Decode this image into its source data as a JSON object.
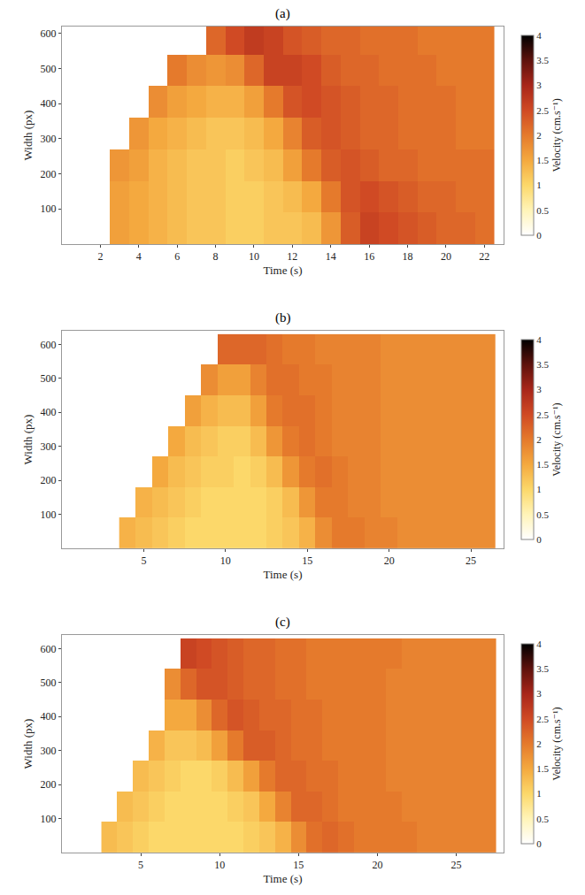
{
  "chart_data": [
    {
      "type": "heatmap",
      "title": "(a)",
      "x_label": "Time (s)",
      "y_label": "Width (px)",
      "x": [
        2,
        3,
        4,
        5,
        6,
        7,
        8,
        9,
        10,
        11,
        12,
        13,
        14,
        15,
        16,
        17,
        18,
        19,
        20,
        21,
        22
      ],
      "y": [
        45,
        135,
        225,
        315,
        405,
        495,
        585
      ],
      "z": [
        [
          null,
          1.6,
          1.5,
          1.4,
          1.3,
          1.2,
          1.2,
          1.1,
          1.1,
          1.2,
          1.2,
          1.3,
          1.7,
          2.3,
          2.6,
          2.5,
          2.4,
          2.3,
          2.2,
          2.2,
          2.1
        ],
        [
          null,
          1.6,
          1.5,
          1.4,
          1.3,
          1.2,
          1.2,
          1.1,
          1.1,
          1.2,
          1.3,
          1.5,
          2.0,
          2.4,
          2.5,
          2.4,
          2.3,
          2.2,
          2.2,
          2.1,
          2.1
        ],
        [
          null,
          1.7,
          1.6,
          1.4,
          1.3,
          1.2,
          1.2,
          1.1,
          1.2,
          1.3,
          1.6,
          2.0,
          2.3,
          2.4,
          2.3,
          2.2,
          2.2,
          2.1,
          2.1,
          2.1,
          2.1
        ],
        [
          null,
          null,
          1.7,
          1.5,
          1.4,
          1.3,
          1.2,
          1.2,
          1.3,
          1.5,
          1.9,
          2.3,
          2.4,
          2.3,
          2.2,
          2.2,
          2.1,
          2.1,
          2.1,
          2.0,
          2.0
        ],
        [
          null,
          null,
          null,
          1.8,
          1.6,
          1.5,
          1.4,
          1.4,
          1.6,
          2.0,
          2.4,
          2.5,
          2.4,
          2.3,
          2.2,
          2.2,
          2.1,
          2.1,
          2.1,
          2.0,
          2.0
        ],
        [
          null,
          null,
          null,
          null,
          2.0,
          1.8,
          1.7,
          1.8,
          2.2,
          2.6,
          2.6,
          2.5,
          2.3,
          2.2,
          2.2,
          2.1,
          2.1,
          2.1,
          2.0,
          2.0,
          2.0
        ],
        [
          null,
          null,
          null,
          null,
          null,
          null,
          2.2,
          2.5,
          2.7,
          2.6,
          2.4,
          2.3,
          2.2,
          2.2,
          2.1,
          2.1,
          2.1,
          2.0,
          2.0,
          2.0,
          2.0
        ]
      ],
      "xlim": [
        0,
        23
      ],
      "xticks": [
        2,
        4,
        6,
        8,
        10,
        12,
        14,
        16,
        18,
        20,
        22
      ],
      "ylim": [
        0,
        620
      ],
      "yticks": [
        100,
        200,
        300,
        400,
        500,
        600
      ],
      "colorbar": {
        "title": "Velocity (cm.s⁻¹)",
        "range": [
          0,
          4
        ],
        "ticks": [
          0,
          0.5,
          1,
          1.5,
          2,
          2.5,
          3,
          3.5,
          4
        ]
      }
    },
    {
      "type": "heatmap",
      "title": "(b)",
      "x_label": "Time (s)",
      "y_label": "Width (px)",
      "x": [
        4,
        5,
        6,
        7,
        8,
        9,
        10,
        11,
        12,
        13,
        14,
        15,
        16,
        17,
        18,
        19,
        20,
        21,
        22,
        23,
        24,
        25,
        26
      ],
      "y": [
        45,
        135,
        225,
        315,
        405,
        495,
        585
      ],
      "z": [
        [
          1.4,
          1.3,
          1.2,
          1.1,
          1.0,
          1.0,
          1.0,
          1.0,
          1.0,
          1.1,
          1.2,
          1.4,
          1.8,
          2.0,
          2.0,
          1.9,
          1.9,
          1.8,
          1.8,
          1.8,
          1.8,
          1.8,
          1.8
        ],
        [
          null,
          1.4,
          1.3,
          1.2,
          1.1,
          1.0,
          1.0,
          1.0,
          1.0,
          1.1,
          1.3,
          1.7,
          2.0,
          2.0,
          1.9,
          1.9,
          1.8,
          1.8,
          1.8,
          1.8,
          1.8,
          1.8,
          1.8
        ],
        [
          null,
          null,
          1.5,
          1.3,
          1.2,
          1.1,
          1.1,
          1.0,
          1.1,
          1.3,
          1.7,
          2.0,
          2.1,
          2.0,
          1.9,
          1.9,
          1.8,
          1.8,
          1.8,
          1.8,
          1.8,
          1.8,
          1.8
        ],
        [
          null,
          null,
          null,
          1.5,
          1.3,
          1.2,
          1.1,
          1.1,
          1.3,
          1.7,
          2.0,
          2.1,
          2.0,
          1.9,
          1.9,
          1.9,
          1.8,
          1.8,
          1.8,
          1.8,
          1.8,
          1.8,
          1.8
        ],
        [
          null,
          null,
          null,
          null,
          1.6,
          1.4,
          1.3,
          1.3,
          1.6,
          2.0,
          2.1,
          2.1,
          2.0,
          1.9,
          1.9,
          1.9,
          1.8,
          1.8,
          1.8,
          1.8,
          1.8,
          1.8,
          1.8
        ],
        [
          null,
          null,
          null,
          null,
          null,
          1.8,
          1.6,
          1.6,
          1.9,
          2.1,
          2.1,
          2.0,
          2.0,
          1.9,
          1.9,
          1.9,
          1.8,
          1.8,
          1.8,
          1.8,
          1.8,
          1.8,
          1.8
        ],
        [
          null,
          null,
          null,
          null,
          null,
          null,
          2.2,
          2.2,
          2.2,
          2.1,
          2.0,
          2.0,
          1.9,
          1.9,
          1.9,
          1.9,
          1.8,
          1.8,
          1.8,
          1.8,
          1.8,
          1.8,
          1.8
        ]
      ],
      "xlim": [
        0,
        27
      ],
      "xticks": [
        5,
        10,
        15,
        20,
        25
      ],
      "ylim": [
        0,
        640
      ],
      "yticks": [
        100,
        200,
        300,
        400,
        500,
        600
      ],
      "colorbar": {
        "title": "Velocity (cm.s⁻¹)",
        "range": [
          0,
          4
        ],
        "ticks": [
          0,
          0.5,
          1,
          1.5,
          2,
          2.5,
          3,
          3.5,
          4
        ]
      }
    },
    {
      "type": "heatmap",
      "title": "(c)",
      "x_label": "Time (s)",
      "y_label": "Width (px)",
      "x": [
        3,
        4,
        5,
        6,
        7,
        8,
        9,
        10,
        11,
        12,
        13,
        14,
        15,
        16,
        17,
        18,
        19,
        20,
        21,
        22,
        23,
        24,
        25,
        26,
        27
      ],
      "y": [
        45,
        135,
        225,
        315,
        405,
        495,
        585
      ],
      "z": [
        [
          1.3,
          1.2,
          1.1,
          1.0,
          1.0,
          1.0,
          1.0,
          1.0,
          1.0,
          1.1,
          1.2,
          1.4,
          1.8,
          2.1,
          2.2,
          2.1,
          2.0,
          2.0,
          2.0,
          2.0,
          1.9,
          1.9,
          1.9,
          1.9,
          1.9
        ],
        [
          null,
          1.3,
          1.2,
          1.1,
          1.0,
          1.0,
          1.0,
          1.0,
          1.1,
          1.2,
          1.5,
          1.9,
          2.2,
          2.2,
          2.1,
          2.0,
          2.0,
          2.0,
          2.0,
          1.9,
          1.9,
          1.9,
          1.9,
          1.9,
          1.9
        ],
        [
          null,
          null,
          1.3,
          1.2,
          1.1,
          1.0,
          1.0,
          1.1,
          1.3,
          1.6,
          2.0,
          2.2,
          2.2,
          2.1,
          2.1,
          2.0,
          2.0,
          2.0,
          1.9,
          1.9,
          1.9,
          1.9,
          1.9,
          1.9,
          1.9
        ],
        [
          null,
          null,
          null,
          1.4,
          1.2,
          1.2,
          1.3,
          1.6,
          2.0,
          2.3,
          2.3,
          2.2,
          2.1,
          2.1,
          2.0,
          2.0,
          2.0,
          2.0,
          1.9,
          1.9,
          1.9,
          1.9,
          1.9,
          1.9,
          1.9
        ],
        [
          null,
          null,
          null,
          null,
          1.5,
          1.5,
          1.8,
          2.2,
          2.4,
          2.3,
          2.2,
          2.2,
          2.1,
          2.1,
          2.0,
          2.0,
          2.0,
          2.0,
          1.9,
          1.9,
          1.9,
          1.9,
          1.9,
          1.9,
          1.9
        ],
        [
          null,
          null,
          null,
          null,
          1.8,
          2.2,
          2.4,
          2.4,
          2.3,
          2.2,
          2.2,
          2.1,
          2.1,
          2.0,
          2.0,
          2.0,
          2.0,
          2.0,
          1.9,
          1.9,
          1.9,
          1.9,
          1.9,
          1.9,
          1.9
        ],
        [
          null,
          null,
          null,
          null,
          null,
          2.6,
          2.5,
          2.4,
          2.3,
          2.2,
          2.2,
          2.1,
          2.1,
          2.0,
          2.0,
          2.0,
          2.0,
          2.0,
          2.0,
          1.9,
          1.9,
          1.9,
          1.9,
          1.9,
          1.9
        ]
      ],
      "xlim": [
        0,
        28
      ],
      "xticks": [
        5,
        10,
        15,
        20,
        25
      ],
      "ylim": [
        0,
        640
      ],
      "yticks": [
        100,
        200,
        300,
        400,
        500,
        600
      ],
      "colorbar": {
        "title": "Velocity (cm.s⁻¹)",
        "range": [
          0,
          4
        ],
        "ticks": [
          0,
          0.5,
          1,
          1.5,
          2,
          2.5,
          3,
          3.5,
          4
        ]
      }
    }
  ]
}
